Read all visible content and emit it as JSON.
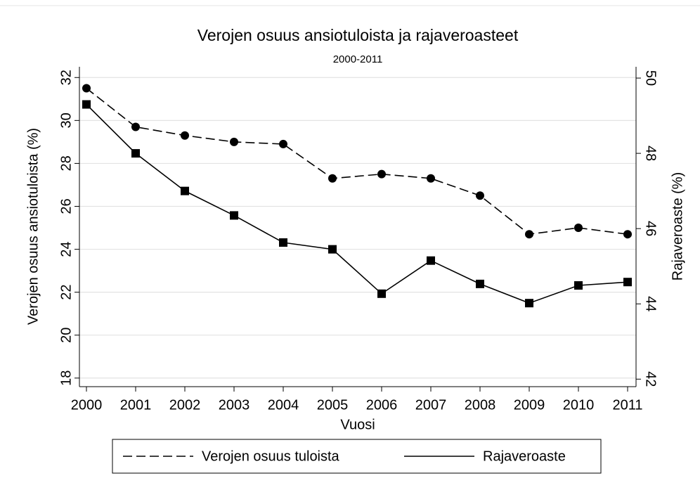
{
  "chart_data": {
    "type": "line",
    "title": "Verojen osuus ansiotuloista ja rajaveroasteet",
    "subtitle": "2000-2011",
    "x_label": "Vuosi",
    "y_label": "Verojen osuus ansiotuloista (%)",
    "y2_label": "Rajaveroaste (%)",
    "categories": [
      "2000",
      "2001",
      "2002",
      "2003",
      "2004",
      "2005",
      "2006",
      "2007",
      "2008",
      "2009",
      "2010",
      "2011"
    ],
    "series": [
      {
        "name": "Verojen osuus tuloista",
        "color": "#000000",
        "style": "dashed",
        "marker": "circle",
        "values": [
          31.5,
          29.7,
          29.3,
          29.0,
          28.9,
          27.3,
          27.5,
          27.3,
          26.5,
          24.7,
          25.0,
          24.7
        ]
      },
      {
        "name": "Rajaveroaste",
        "color": "#000000",
        "style": "solid",
        "marker": "square",
        "axis": "y2",
        "values": [
          49.3,
          48.0,
          47.0,
          46.35,
          45.63,
          45.45,
          44.27,
          45.15,
          44.53,
          44.02,
          44.49,
          44.58
        ]
      }
    ],
    "ylim": [
      17.6,
      32.5
    ],
    "yticks": [
      18,
      20,
      22,
      24,
      26,
      28,
      30,
      32
    ],
    "y2lim": [
      41.8,
      50.3
    ],
    "y2ticks": [
      42,
      44,
      46,
      48,
      50
    ],
    "grid": true,
    "legend": "bottom"
  }
}
